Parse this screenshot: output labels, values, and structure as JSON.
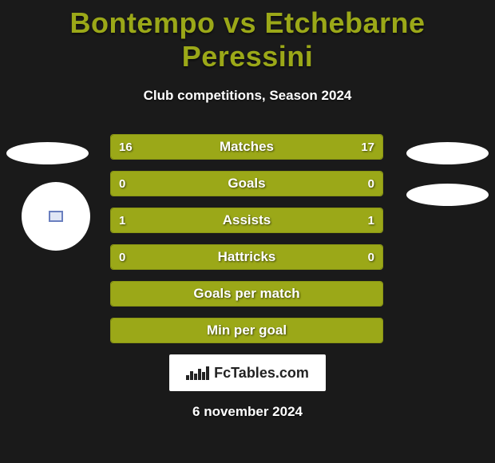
{
  "title": "Bontempo vs Etchebarne Peressini",
  "subtitle": "Club competitions, Season 2024",
  "date": "6 november 2024",
  "badge": {
    "text": "FcTables.com"
  },
  "colors": {
    "accent": "#9ba818",
    "background": "#1a1a1a",
    "text": "#ffffff"
  },
  "rows": [
    {
      "label": "Matches",
      "left": "16",
      "right": "17",
      "left_fill_pct": 49,
      "right_fill_pct": 51,
      "show_values": true
    },
    {
      "label": "Goals",
      "left": "0",
      "right": "0",
      "left_fill_pct": 0,
      "right_fill_pct": 100,
      "show_values": true
    },
    {
      "label": "Assists",
      "left": "1",
      "right": "1",
      "left_fill_pct": 52,
      "right_fill_pct": 48,
      "show_values": true
    },
    {
      "label": "Hattricks",
      "left": "0",
      "right": "0",
      "left_fill_pct": 55,
      "right_fill_pct": 45,
      "show_values": true
    },
    {
      "label": "Goals per match",
      "left": "",
      "right": "",
      "left_fill_pct": 100,
      "right_fill_pct": 0,
      "show_values": false
    },
    {
      "label": "Min per goal",
      "left": "",
      "right": "",
      "left_fill_pct": 100,
      "right_fill_pct": 0,
      "show_values": false
    }
  ],
  "badge_bars": [
    6,
    11,
    8,
    14,
    10,
    17
  ]
}
